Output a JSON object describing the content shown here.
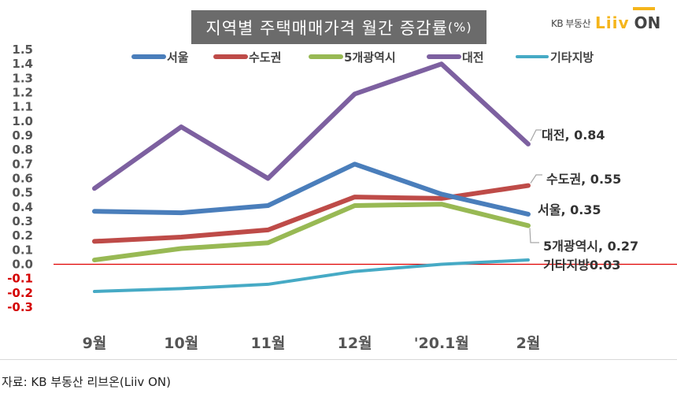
{
  "header": {
    "title_main": "지역별 주택매매가격 월간 증감률",
    "title_unit": "(%)",
    "logo_text": "KB 부동산",
    "logo_brand": "Liiv",
    "logo_brand_suffix": "ON"
  },
  "footer": {
    "source": "자료: KB 부동산  리브온(Liiv ON)"
  },
  "chart_data": {
    "type": "line",
    "title": "지역별 주택매매가격 월간 증감률(%)",
    "xlabel": "",
    "ylabel": "",
    "categories": [
      "9월",
      "10월",
      "11월",
      "12월",
      "'20.1월",
      "2월"
    ],
    "ylim": [
      -0.3,
      1.5
    ],
    "ytick_step": 0.1,
    "yticks": [
      "1.5",
      "1.4",
      "1.3",
      "1.2",
      "1.1",
      "1.0",
      "0.9",
      "0.8",
      "0.7",
      "0.6",
      "0.5",
      "0.4",
      "0.3",
      "0.2",
      "0.1",
      "0.0",
      "-0.1",
      "-0.2",
      "-0.3"
    ],
    "negative_tick_color": "#d40000",
    "positive_tick_color": "#555555",
    "zero_line_color": "#e00000",
    "grid": false,
    "legend_position": "top",
    "series": [
      {
        "name": "서울",
        "color": "#4a7ebb",
        "values": [
          0.37,
          0.36,
          0.41,
          0.7,
          0.49,
          0.35
        ],
        "end_label": "서울, 0.35",
        "width": 6
      },
      {
        "name": "수도권",
        "color": "#be4b48",
        "values": [
          0.16,
          0.19,
          0.24,
          0.47,
          0.46,
          0.55
        ],
        "end_label": "수도권, 0.55",
        "width": 6
      },
      {
        "name": "5개광역시",
        "color": "#98b954",
        "values": [
          0.03,
          0.11,
          0.15,
          0.41,
          0.42,
          0.27
        ],
        "end_label": "5개광역시, 0.27",
        "width": 6
      },
      {
        "name": "대전",
        "color": "#7d60a0",
        "values": [
          0.53,
          0.96,
          0.6,
          1.19,
          1.4,
          0.84
        ],
        "end_label": "대전, 0.84",
        "width": 6
      },
      {
        "name": "기타지방",
        "color": "#46aac5",
        "values": [
          -0.19,
          -0.17,
          -0.14,
          -0.05,
          0.0,
          0.03
        ],
        "end_label": "기타지방0.03",
        "width": 4
      }
    ]
  }
}
